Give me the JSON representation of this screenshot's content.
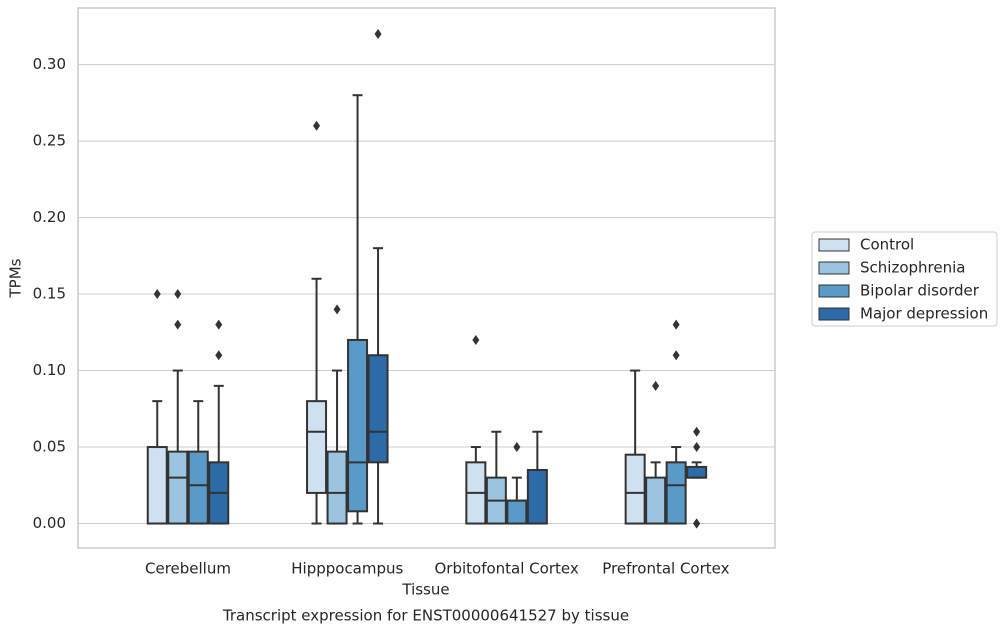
{
  "chart_data": {
    "type": "box",
    "title": "Transcript expression for ENST00000641527 by tissue",
    "xlabel": "Tissue",
    "ylabel": "TPMs",
    "categories": [
      "Cerebellum",
      "Hipppocampus",
      "Orbitofontal Cortex",
      "Prefrontal Cortex"
    ],
    "ylim": [
      -0.016,
      0.337
    ],
    "yticks": [
      {
        "value": 0,
        "label": "0.00"
      },
      {
        "value": 0.05,
        "label": "0.05"
      },
      {
        "value": 0.1,
        "label": "0.10"
      },
      {
        "value": 0.15,
        "label": "0.15"
      },
      {
        "value": 0.2,
        "label": "0.20"
      },
      {
        "value": 0.25,
        "label": "0.25"
      },
      {
        "value": 0.3,
        "label": "0.30"
      }
    ],
    "grid": true,
    "legend": "right",
    "series": [
      {
        "name": "Control",
        "color": "#cfe0f0",
        "values": [
          {
            "low": 0,
            "q1": 0,
            "median": 0,
            "q3": 0.05,
            "high": 0.08,
            "outliers": [
              0.15
            ]
          },
          {
            "low": 0,
            "q1": 0.02,
            "median": 0.06,
            "q3": 0.08,
            "high": 0.16,
            "outliers": [
              0.26
            ]
          },
          {
            "low": 0,
            "q1": 0,
            "median": 0.02,
            "q3": 0.04,
            "high": 0.05,
            "outliers": [
              0.12
            ]
          },
          {
            "low": 0,
            "q1": 0,
            "median": 0.02,
            "q3": 0.045,
            "high": 0.1,
            "outliers": []
          }
        ]
      },
      {
        "name": "Schizophrenia",
        "color": "#9cc4de",
        "values": [
          {
            "low": 0,
            "q1": 0,
            "median": 0.03,
            "q3": 0.047,
            "high": 0.1,
            "outliers": [
              0.15,
              0.13
            ]
          },
          {
            "low": 0,
            "q1": 0,
            "median": 0.02,
            "q3": 0.047,
            "high": 0.1,
            "outliers": [
              0.14
            ]
          },
          {
            "low": 0,
            "q1": 0,
            "median": 0.015,
            "q3": 0.03,
            "high": 0.06,
            "outliers": []
          },
          {
            "low": 0,
            "q1": 0,
            "median": 0,
            "q3": 0.03,
            "high": 0.04,
            "outliers": [
              0.09
            ]
          }
        ]
      },
      {
        "name": "Bipolar disorder",
        "color": "#5a9ac8",
        "values": [
          {
            "low": 0,
            "q1": 0,
            "median": 0.025,
            "q3": 0.047,
            "high": 0.08,
            "outliers": []
          },
          {
            "low": 0,
            "q1": 0.008,
            "median": 0.04,
            "q3": 0.12,
            "high": 0.28,
            "outliers": []
          },
          {
            "low": 0,
            "q1": 0,
            "median": 0.015,
            "q3": 0.015,
            "high": 0.03,
            "outliers": [
              0.05
            ]
          },
          {
            "low": 0,
            "q1": 0,
            "median": 0.025,
            "q3": 0.04,
            "high": 0.05,
            "outliers": [
              0.13,
              0.11
            ]
          }
        ]
      },
      {
        "name": "Major depression",
        "color": "#2c6aa8",
        "values": [
          {
            "low": 0,
            "q1": 0,
            "median": 0.02,
            "q3": 0.04,
            "high": 0.09,
            "outliers": [
              0.13,
              0.11
            ]
          },
          {
            "low": 0,
            "q1": 0.04,
            "median": 0.06,
            "q3": 0.11,
            "high": 0.18,
            "outliers": [
              0.32
            ]
          },
          {
            "low": 0,
            "q1": 0,
            "median": 0,
            "q3": 0.035,
            "high": 0.06,
            "outliers": []
          },
          {
            "low": 0.03,
            "q1": 0.03,
            "median": 0.03,
            "q3": 0.037,
            "high": 0.04,
            "outliers": [
              0.06,
              0.05,
              0,
              0
            ]
          }
        ]
      }
    ]
  }
}
